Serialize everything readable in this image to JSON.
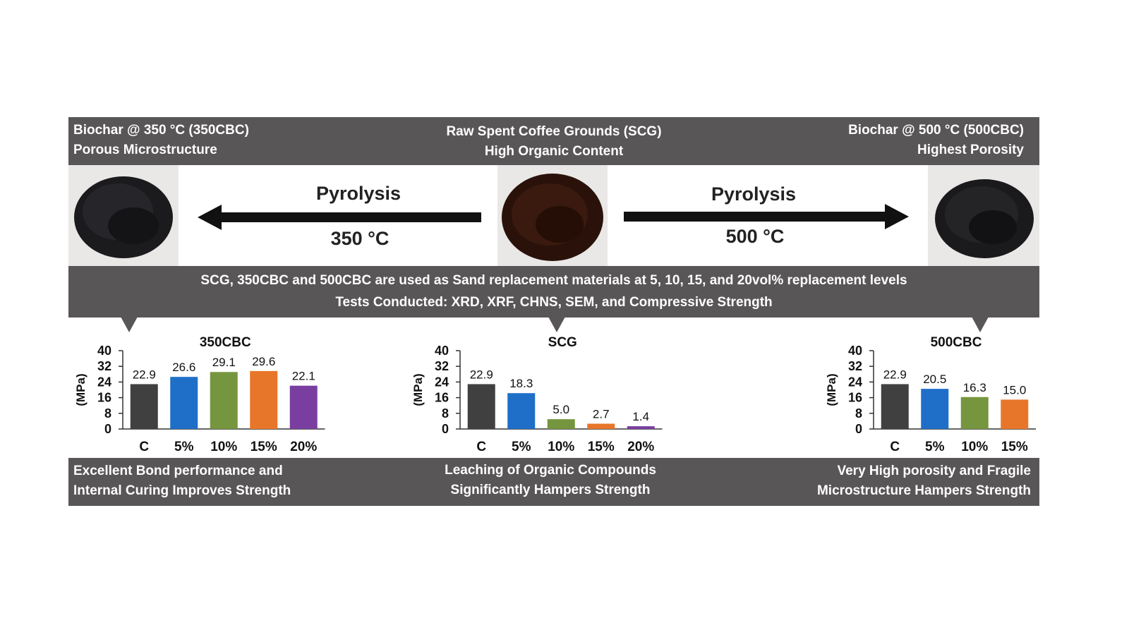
{
  "top": {
    "left": {
      "line1": "Biochar @ 350 °C (350CBC)",
      "line2": "Porous Microstructure"
    },
    "center": {
      "line1": "Raw Spent Coffee Grounds (SCG)",
      "line2": "High Organic Content"
    },
    "right": {
      "line1": "Biochar @ 500 °C (500CBC)",
      "line2": "Highest Porosity"
    }
  },
  "arrows": {
    "left": {
      "title": "Pyrolysis",
      "temp": "350 °C"
    },
    "right": {
      "title": "Pyrolysis",
      "temp": "500 °C"
    }
  },
  "middle": {
    "line1": "SCG, 350CBC and 500CBC are used as Sand replacement materials at 5, 10, 15, and 20vol% replacement levels",
    "line2": "Tests Conducted: XRD, XRF, CHNS, SEM, and Compressive Strength"
  },
  "bottom": {
    "left": {
      "line1": "Excellent Bond performance and",
      "line2": "Internal Curing Improves Strength"
    },
    "center": {
      "line1": "Leaching of Organic Compounds",
      "line2": "Significantly Hampers Strength"
    },
    "right": {
      "line1": "Very High porosity and Fragile",
      "line2": "Microstructure Hampers Strength"
    }
  },
  "colors": {
    "band": "#595657",
    "C": "#404040",
    "5%": "#1f6fc9",
    "10%": "#76953f",
    "15%": "#e8762a",
    "20%": "#7a3ea0"
  },
  "chart_data": [
    {
      "type": "bar",
      "title": "350CBC",
      "ylabel": "(MPa)",
      "ylim": [
        0,
        40
      ],
      "yticks": [
        0,
        8,
        16,
        24,
        32,
        40
      ],
      "categories": [
        "C",
        "5%",
        "10%",
        "15%",
        "20%"
      ],
      "values": [
        22.9,
        26.6,
        29.1,
        29.6,
        22.1
      ],
      "labels": [
        "22.9",
        "26.6",
        "29.1",
        "29.6",
        "22.1"
      ]
    },
    {
      "type": "bar",
      "title": "SCG",
      "ylabel": "(MPa)",
      "ylim": [
        0,
        40
      ],
      "yticks": [
        0,
        8,
        16,
        24,
        32,
        40
      ],
      "categories": [
        "C",
        "5%",
        "10%",
        "15%",
        "20%"
      ],
      "values": [
        22.9,
        18.3,
        5.0,
        2.7,
        1.4
      ],
      "labels": [
        "22.9",
        "18.3",
        "5.0",
        "2.7",
        "1.4"
      ]
    },
    {
      "type": "bar",
      "title": "500CBC",
      "ylabel": "(MPa)",
      "ylim": [
        0,
        40
      ],
      "yticks": [
        0,
        8,
        16,
        24,
        32,
        40
      ],
      "categories": [
        "C",
        "5%",
        "10%",
        "15%"
      ],
      "values": [
        22.9,
        20.5,
        16.3,
        15.0
      ],
      "labels": [
        "22.9",
        "20.5",
        "16.3",
        "15.0"
      ]
    }
  ]
}
